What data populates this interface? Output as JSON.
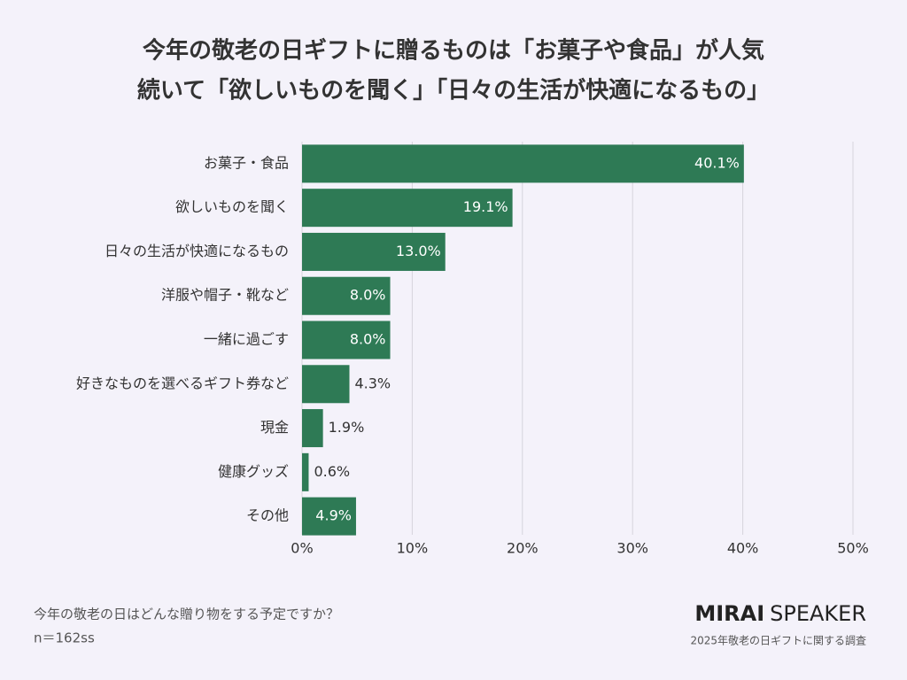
{
  "chart_data": {
    "type": "bar",
    "orientation": "horizontal",
    "title": [
      "今年の敬老の日ギフトに贈るものは「お菓子や食品」が人気",
      "続いて「欲しいものを聞く」「日々の生活が快適になるもの」"
    ],
    "categories": [
      "お菓子・食品",
      "欲しいものを聞く",
      "日々の生活が快適になるもの",
      "洋服や帽子・靴など",
      "一緒に過ごす",
      "好きなものを選べるギフト券など",
      "現金",
      "健康グッズ",
      "その他"
    ],
    "values": [
      40.1,
      19.1,
      13.0,
      8.0,
      8.0,
      4.3,
      1.9,
      0.6,
      4.9
    ],
    "value_labels": [
      "40.1%",
      "19.1%",
      "13.0%",
      "8.0%",
      "8.0%",
      "4.3%",
      "1.9%",
      "0.6%",
      "4.9%"
    ],
    "color": "#2e7a55",
    "xlim": [
      0,
      50
    ],
    "xticks": [
      {
        "value": 0,
        "label": "0%"
      },
      {
        "value": 10,
        "label": "10%"
      },
      {
        "value": 20,
        "label": "20%"
      },
      {
        "value": 30,
        "label": "30%"
      },
      {
        "value": 40,
        "label": "40%"
      },
      {
        "value": 50,
        "label": "50%"
      }
    ],
    "grid": true,
    "question": "今年の敬老の日はどんな贈り物をする予定ですか？",
    "sample": "n＝162ss",
    "brand": [
      "MIRAI",
      "SPEAKER"
    ],
    "source": "2025年敬老の日ギフトに関する調査"
  }
}
